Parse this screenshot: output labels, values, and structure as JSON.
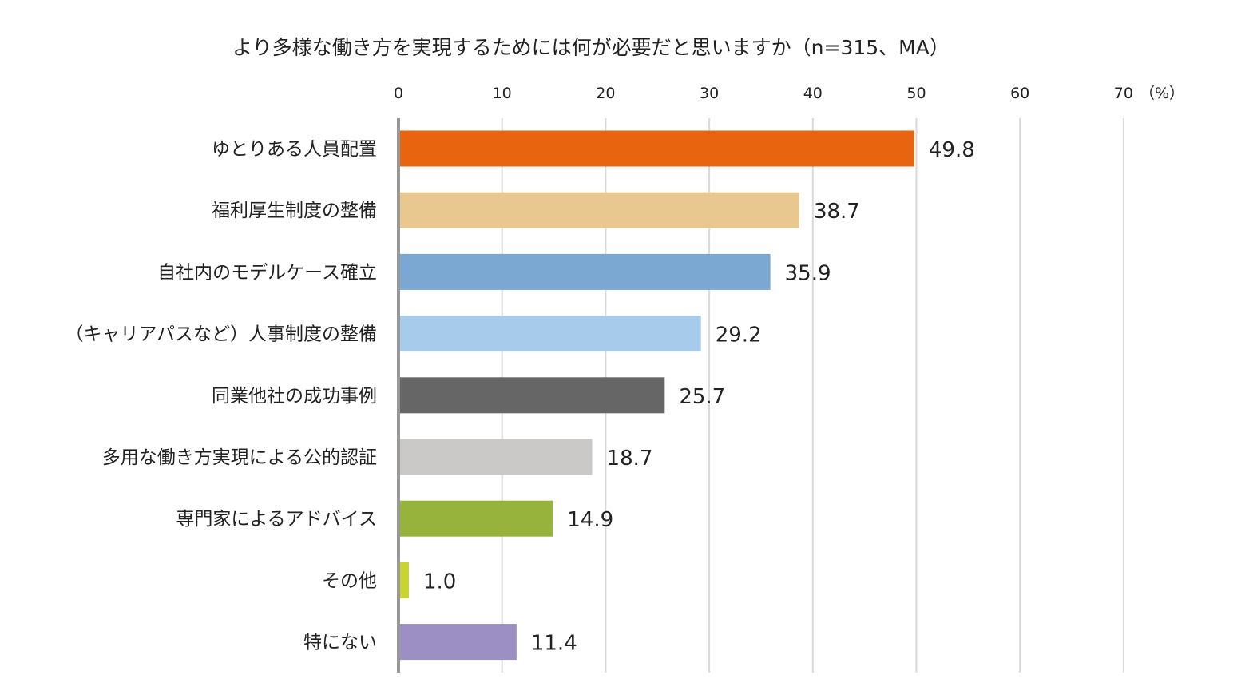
{
  "chart_data": {
    "type": "bar",
    "orientation": "horizontal",
    "title": "より多様な働き方を実現するためには何が必要だと思いますか（n=315、MA）",
    "unit_label": "（%）",
    "xlim": [
      0,
      70
    ],
    "ticks": [
      0,
      10,
      20,
      30,
      40,
      50,
      60,
      70
    ],
    "grid": true,
    "categories": [
      "ゆとりある人員配置",
      "福利厚生制度の整備",
      "自社内のモデルケース確立",
      "（キャリアパスなど）人事制度の整備",
      "同業他社の成功事例",
      "多用な働き方実現による公的認証",
      "専門家によるアドバイス",
      "その他",
      "特にない"
    ],
    "values": [
      49.8,
      38.7,
      35.9,
      29.2,
      25.7,
      18.7,
      14.9,
      1.0,
      11.4
    ],
    "value_labels": [
      "49.8",
      "38.7",
      "35.9",
      "29.2",
      "25.7",
      "18.7",
      "14.9",
      "1.0",
      "11.4"
    ],
    "colors": [
      "#E8640F",
      "#E8C88E",
      "#7AA8D3",
      "#A6CBEB",
      "#666666",
      "#CBC8C8",
      "#98B33C",
      "#C8D42F",
      "#9B8FC3"
    ],
    "axis_color": "#999999",
    "grid_color": "#D9D9D9"
  }
}
